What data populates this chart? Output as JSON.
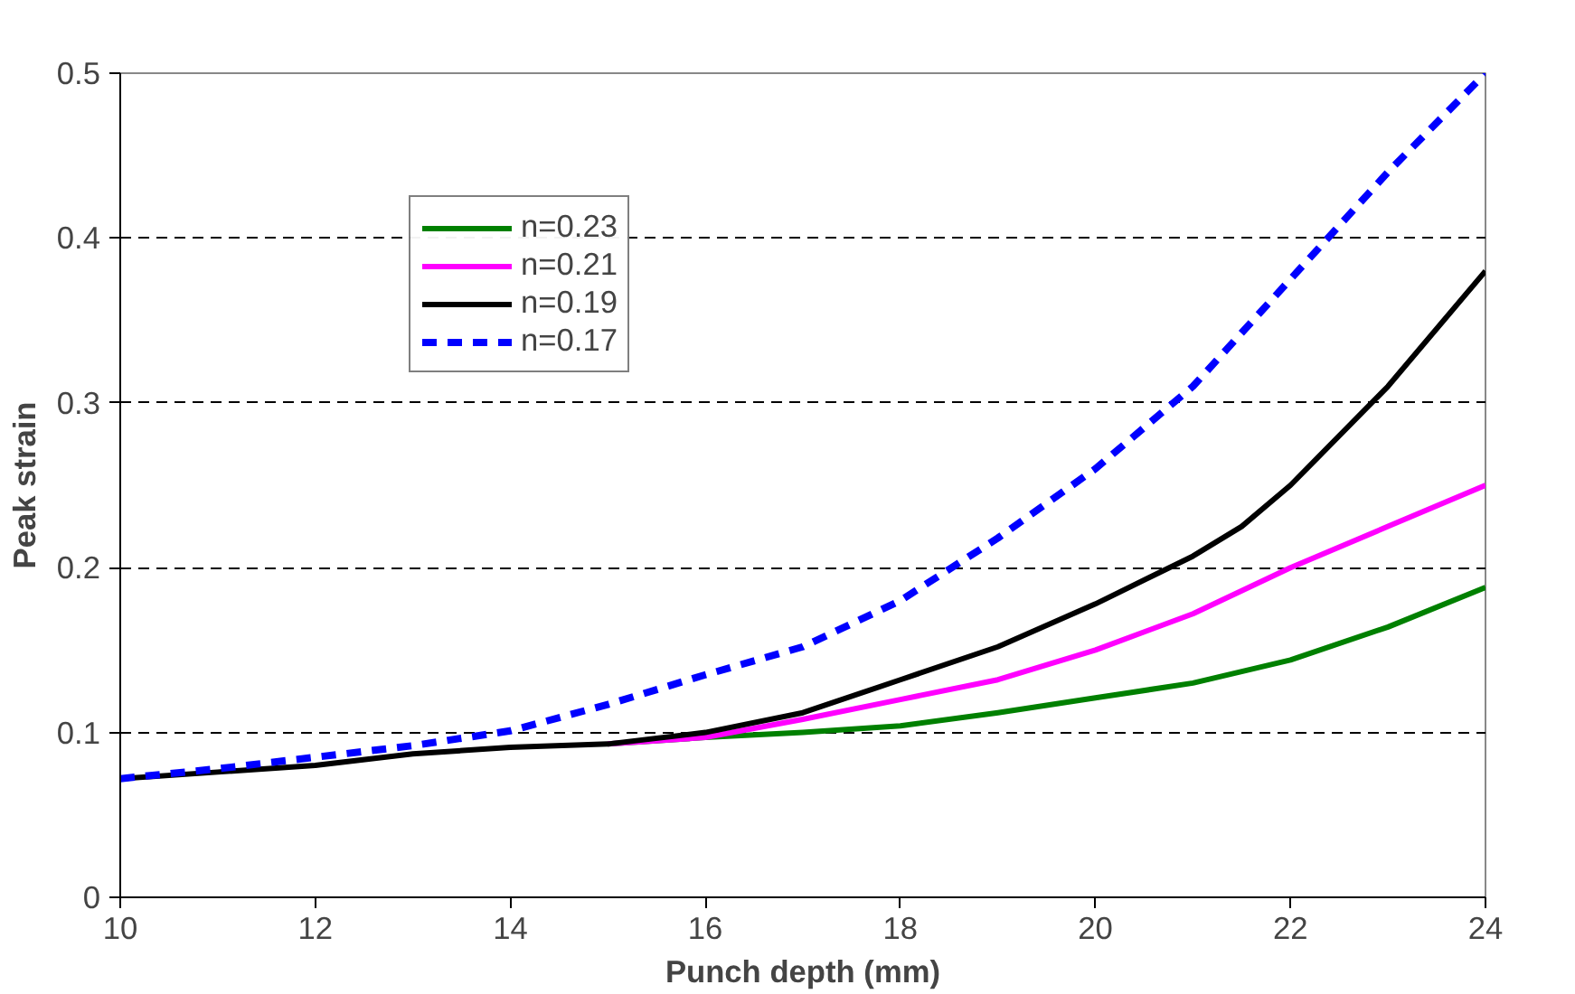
{
  "chart_data": {
    "type": "line",
    "xlabel": "Punch depth (mm)",
    "ylabel": "Peak strain",
    "xlim": [
      10,
      24
    ],
    "xticks": [
      10,
      12,
      14,
      16,
      18,
      20,
      22,
      24
    ],
    "ylim": [
      0,
      0.5
    ],
    "yticks": [
      0,
      0.1,
      0.2,
      0.3,
      0.4,
      0.5
    ],
    "grid": "y",
    "legend": "top left",
    "series": [
      {
        "name": "n=0.23",
        "color": "#008000",
        "x": [
          15,
          16,
          17,
          18,
          19,
          20,
          21,
          22,
          23,
          24
        ],
        "values": [
          0.093,
          0.097,
          0.1,
          0.104,
          0.112,
          0.121,
          0.13,
          0.144,
          0.164,
          0.188
        ]
      },
      {
        "name": "n=0.21",
        "color": "#ff00ff",
        "x": [
          15,
          16,
          17,
          18,
          19,
          20,
          21,
          22,
          23,
          24
        ],
        "values": [
          0.093,
          0.097,
          0.108,
          0.12,
          0.132,
          0.15,
          0.172,
          0.2,
          0.225,
          0.25
        ]
      },
      {
        "name": "n=0.19",
        "color": "#000000",
        "x": [
          10,
          11,
          12,
          13,
          14,
          15,
          16,
          17,
          18,
          19,
          20,
          21,
          21.5,
          22,
          23,
          24
        ],
        "values": [
          0.072,
          0.076,
          0.08,
          0.087,
          0.091,
          0.093,
          0.1,
          0.112,
          0.132,
          0.152,
          0.178,
          0.207,
          0.225,
          0.25,
          0.31,
          0.38
        ]
      },
      {
        "name": "n=0.17",
        "color": "#0000ff",
        "line_style": "dashed",
        "x": [
          10,
          11,
          12,
          13,
          14,
          15,
          16,
          17,
          18,
          19,
          20,
          21,
          22,
          23,
          24
        ],
        "values": [
          0.072,
          0.078,
          0.085,
          0.092,
          0.101,
          0.117,
          0.135,
          0.152,
          0.18,
          0.218,
          0.26,
          0.31,
          0.375,
          0.44,
          0.5
        ]
      }
    ]
  }
}
